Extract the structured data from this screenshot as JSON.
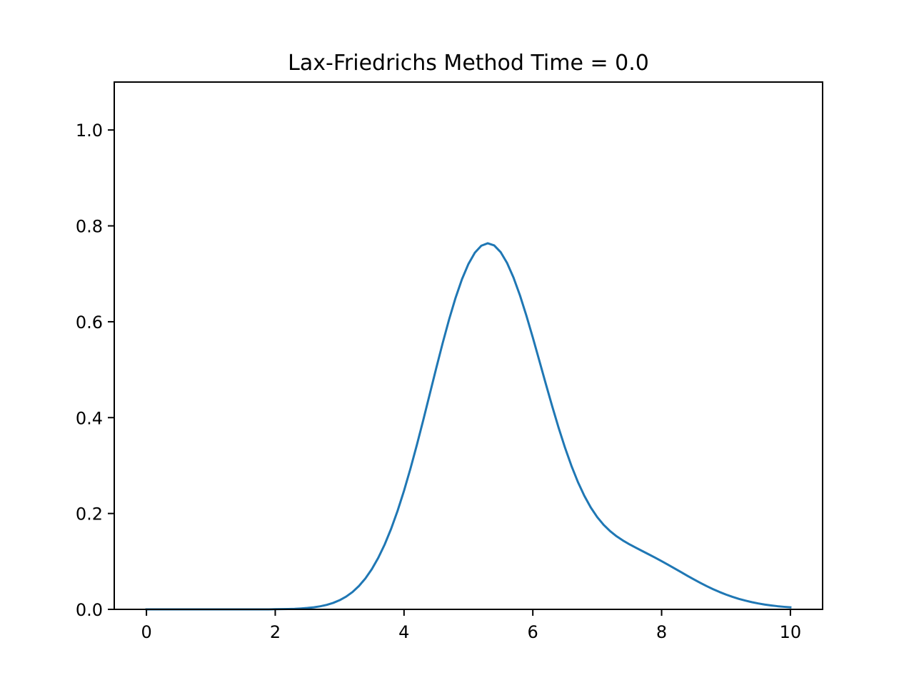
{
  "chart_data": {
    "type": "line",
    "title": "Lax-Friedrichs Method Time = 0.0",
    "xlabel": "",
    "ylabel": "",
    "xlim": [
      -0.5,
      10.5
    ],
    "ylim": [
      0.0,
      1.1
    ],
    "grid": false,
    "x_ticks": [
      {
        "value": 0,
        "label": "0"
      },
      {
        "value": 2,
        "label": "2"
      },
      {
        "value": 4,
        "label": "4"
      },
      {
        "value": 6,
        "label": "6"
      },
      {
        "value": 8,
        "label": "8"
      },
      {
        "value": 10,
        "label": "10"
      }
    ],
    "y_ticks": [
      {
        "value": 0.0,
        "label": "0.0"
      },
      {
        "value": 0.2,
        "label": "0.2"
      },
      {
        "value": 0.4,
        "label": "0.4"
      },
      {
        "value": 0.6,
        "label": "0.6"
      },
      {
        "value": 0.8,
        "label": "0.8"
      },
      {
        "value": 1.0,
        "label": "1.0"
      }
    ],
    "series": [
      {
        "color": "#1f77b4",
        "x": [
          0,
          0.1,
          0.2,
          0.3,
          0.4,
          0.5,
          0.6,
          0.7,
          0.8,
          0.9,
          1.0,
          1.1,
          1.2,
          1.3,
          1.4,
          1.5,
          1.6,
          1.7,
          1.8,
          1.9,
          2.0,
          2.1,
          2.2,
          2.3,
          2.4,
          2.5,
          2.6,
          2.7,
          2.8,
          2.9,
          3.0,
          3.1,
          3.2,
          3.3,
          3.4,
          3.5,
          3.6,
          3.7,
          3.8,
          3.9,
          4.0,
          4.1,
          4.2,
          4.3,
          4.4,
          4.5,
          4.6,
          4.7,
          4.8,
          4.9,
          5.0,
          5.1,
          5.2,
          5.3,
          5.4,
          5.5,
          5.6,
          5.7,
          5.8,
          5.9,
          6.0,
          6.1,
          6.2,
          6.3,
          6.4,
          6.5,
          6.6,
          6.7,
          6.8,
          6.9,
          7.0,
          7.1,
          7.2,
          7.3,
          7.4,
          7.5,
          7.6,
          7.7,
          7.8,
          7.9,
          8.0,
          8.1,
          8.2,
          8.3,
          8.4,
          8.5,
          8.6,
          8.7,
          8.8,
          8.9,
          9.0,
          9.1,
          9.2,
          9.3,
          9.4,
          9.5,
          9.6,
          9.7,
          9.8,
          9.9,
          10.0
        ],
        "y": [
          0,
          0,
          0,
          0,
          0,
          0,
          0,
          0,
          0,
          0,
          0,
          0,
          0,
          0,
          0,
          0,
          0,
          0,
          0,
          0,
          0.0003,
          0.0005,
          0.0008,
          0.0012,
          0.0019,
          0.0029,
          0.0043,
          0.0064,
          0.0094,
          0.0135,
          0.0191,
          0.0265,
          0.0362,
          0.0487,
          0.0645,
          0.0839,
          0.1075,
          0.1355,
          0.1682,
          0.2056,
          0.2476,
          0.2938,
          0.3434,
          0.3956,
          0.4493,
          0.5031,
          0.5555,
          0.6049,
          0.6498,
          0.6888,
          0.7205,
          0.7441,
          0.7586,
          0.7637,
          0.7592,
          0.7453,
          0.7227,
          0.6922,
          0.6551,
          0.6128,
          0.567,
          0.5193,
          0.4712,
          0.4241,
          0.3791,
          0.3373,
          0.2993,
          0.2657,
          0.2368,
          0.2125,
          0.1925,
          0.1763,
          0.1632,
          0.1525,
          0.1436,
          0.1358,
          0.1286,
          0.1217,
          0.1148,
          0.1078,
          0.1005,
          0.0931,
          0.0855,
          0.0778,
          0.0701,
          0.0626,
          0.0554,
          0.0485,
          0.0421,
          0.0362,
          0.0309,
          0.0261,
          0.0219,
          0.0183,
          0.0151,
          0.0124,
          0.0101,
          0.0082,
          0.0066,
          0.0053,
          0.0042
        ]
      }
    ]
  }
}
